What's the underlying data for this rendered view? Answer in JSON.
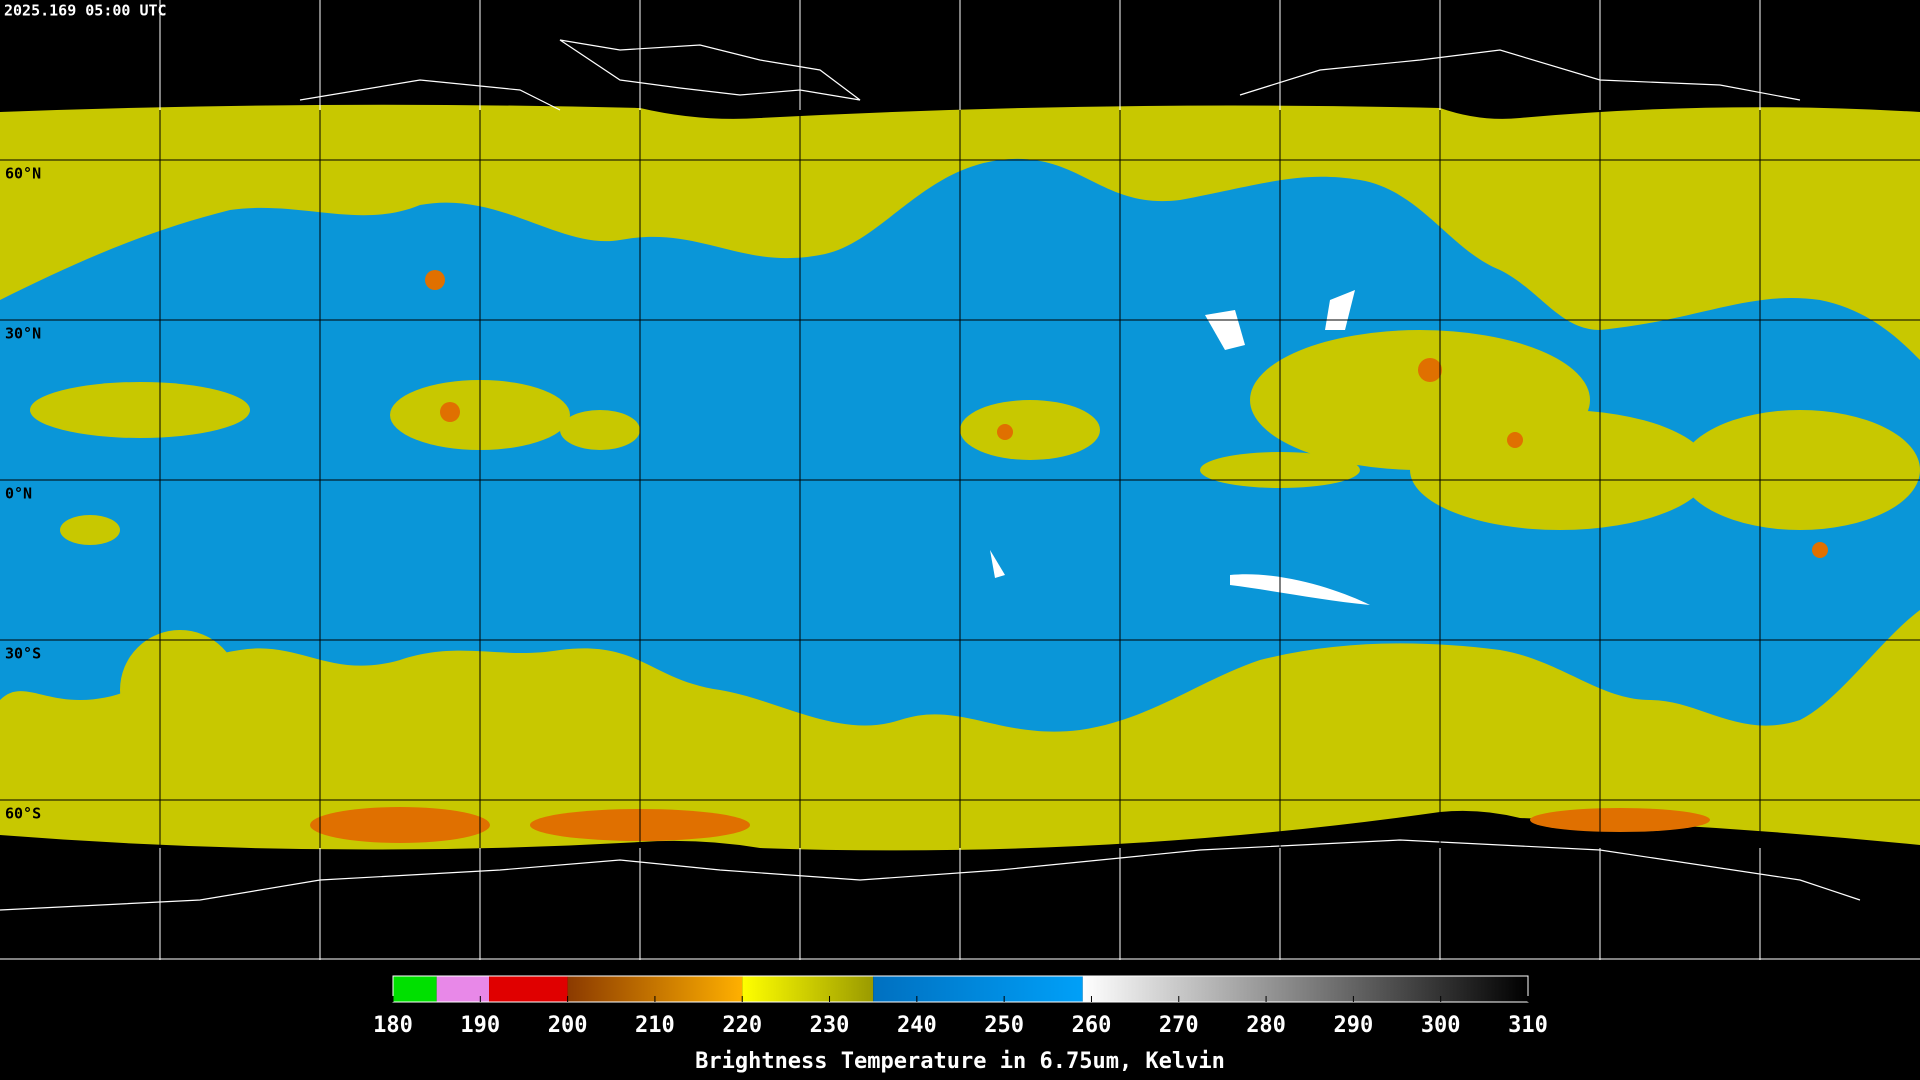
{
  "timestamp": "2025.169 05:00 UTC",
  "lat_lines": [
    {
      "value": 60,
      "label": "60°N"
    },
    {
      "value": 30,
      "label": "30°N"
    },
    {
      "value": 0,
      "label": "0°N"
    },
    {
      "value": -30,
      "label": "30°S"
    },
    {
      "value": -60,
      "label": "60°S"
    }
  ],
  "colorbar": {
    "title": "Brightness Temperature in 6.75um, Kelvin",
    "range": [
      180,
      310
    ],
    "ticks": [
      180,
      190,
      200,
      210,
      220,
      230,
      240,
      250,
      260,
      270,
      280,
      290,
      300,
      310
    ],
    "segments": [
      {
        "from": 180,
        "to": 185,
        "colors": [
          "#00e000",
          "#00e000"
        ]
      },
      {
        "from": 185,
        "to": 191,
        "colors": [
          "#e888e8",
          "#e888e8"
        ]
      },
      {
        "from": 191,
        "to": 200,
        "colors": [
          "#e00000",
          "#e00000"
        ]
      },
      {
        "from": 200,
        "to": 220,
        "colors": [
          "#8b3a00",
          "#ffb000"
        ]
      },
      {
        "from": 220,
        "to": 235,
        "colors": [
          "#ffff00",
          "#9a9a00"
        ]
      },
      {
        "from": 235,
        "to": 259,
        "colors": [
          "#0070c0",
          "#00a0f8"
        ]
      },
      {
        "from": 259,
        "to": 310,
        "colors": [
          "#ffffff",
          "#000000"
        ]
      }
    ]
  }
}
